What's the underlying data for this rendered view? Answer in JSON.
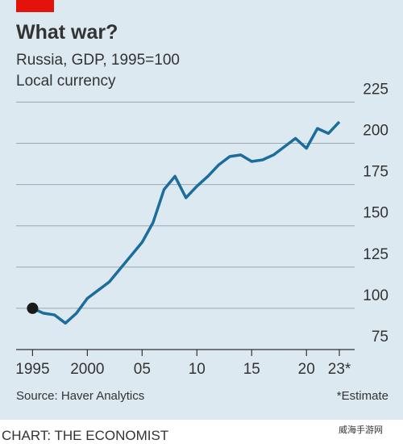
{
  "chart_data": {
    "type": "line",
    "title": "What war?",
    "subtitle": "Russia, GDP, 1995=100",
    "y_label": "Local currency",
    "source": "Source: Haver Analytics",
    "note": "*Estimate",
    "credit": "CHART: THE ECONOMIST",
    "watermark": "威海手游网",
    "x": [
      1995,
      1996,
      1997,
      1998,
      1999,
      2000,
      2001,
      2002,
      2003,
      2004,
      2005,
      2006,
      2007,
      2008,
      2009,
      2010,
      2011,
      2012,
      2013,
      2014,
      2015,
      2016,
      2017,
      2018,
      2019,
      2020,
      2021,
      2022,
      2023
    ],
    "values": [
      100,
      97,
      96,
      91,
      97,
      106,
      111,
      116,
      124,
      132,
      140,
      152,
      172,
      180,
      167,
      174,
      180,
      187,
      192,
      193,
      189,
      190,
      193,
      198,
      203,
      197,
      209,
      206,
      213
    ],
    "color": "#1c6d9c",
    "marker_color": "#1a1a1a",
    "xlim": [
      1993.5,
      2025.5
    ],
    "xticks": [
      1995,
      2000,
      {
        "value": 2005,
        "label": "05"
      },
      {
        "value": 2010,
        "label": "10"
      },
      {
        "value": 2015,
        "label": "15"
      },
      {
        "value": 2020,
        "label": "20"
      },
      {
        "value": 2023,
        "label": "23*"
      }
    ],
    "ylim": [
      75,
      235
    ],
    "yticks": [
      75,
      100,
      125,
      150,
      175,
      200,
      225
    ],
    "grid": true
  }
}
